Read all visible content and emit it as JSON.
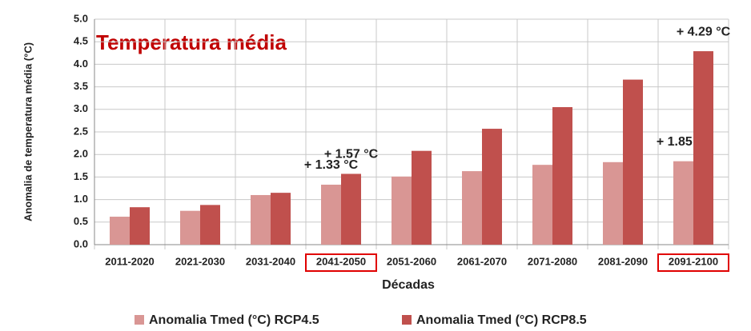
{
  "chart_data": {
    "type": "bar",
    "title": "Temperatura média",
    "y_label": "Anomalia de temperatura média (°C)",
    "x_label": "Décadas",
    "categories": [
      "2011-2020",
      "2021-2030",
      "2031-2040",
      "2041-2050",
      "2051-2060",
      "2061-2070",
      "2071-2080",
      "2081-2090",
      "2091-2100"
    ],
    "series": [
      {
        "name": "Anomalia Tmed (°C) RCP4.5",
        "color": "#d99694",
        "values": [
          0.62,
          0.75,
          1.1,
          1.33,
          1.51,
          1.63,
          1.77,
          1.83,
          1.85
        ],
        "value_labels": [
          null,
          null,
          null,
          "+ 1.33 °C",
          null,
          null,
          null,
          null,
          "+ 1.85 °C"
        ]
      },
      {
        "name": "Anomalia Tmed (°C) RCP8.5",
        "color": "#c0504d",
        "values": [
          0.83,
          0.88,
          1.15,
          1.57,
          2.08,
          2.57,
          3.05,
          3.66,
          4.29
        ],
        "value_labels": [
          null,
          null,
          null,
          "+ 1.57 °C",
          null,
          null,
          null,
          null,
          "+ 4.29 °C"
        ]
      }
    ],
    "highlighted": [
      3,
      8
    ],
    "ylim": [
      0,
      5
    ],
    "yticks": [
      {
        "value": 0,
        "label": "0.0"
      },
      {
        "value": 0.5,
        "label": "0.5"
      },
      {
        "value": 1,
        "label": "1.0"
      },
      {
        "value": 1.5,
        "label": "1.5"
      },
      {
        "value": 2,
        "label": "2.0"
      },
      {
        "value": 2.5,
        "label": "2.5"
      },
      {
        "value": 3,
        "label": "3.0"
      },
      {
        "value": 3.5,
        "label": "3.5"
      },
      {
        "value": 4,
        "label": "4.0"
      },
      {
        "value": 4.5,
        "label": "4.5"
      },
      {
        "value": 5,
        "label": "5.0"
      }
    ],
    "grid": true
  }
}
